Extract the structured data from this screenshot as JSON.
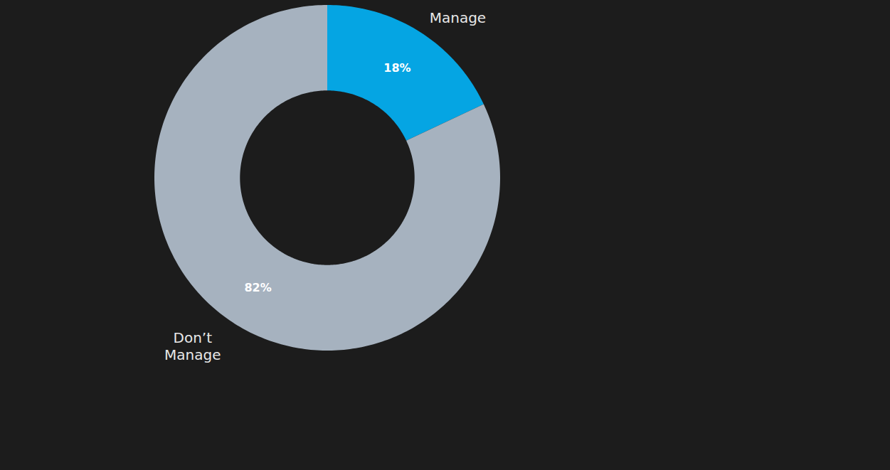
{
  "chart_data": {
    "type": "donut",
    "categories": [
      "Manage",
      "Don’t Manage"
    ],
    "values": [
      18,
      82
    ],
    "value_labels": [
      "18%",
      "82%"
    ],
    "colors": [
      "#05a5e3",
      "#a6b2bf"
    ],
    "data_labels": true
  }
}
